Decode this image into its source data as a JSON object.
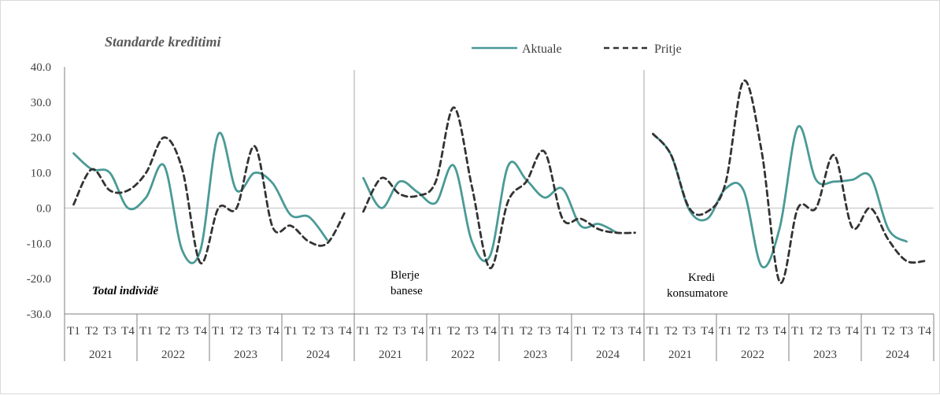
{
  "chart_data": {
    "type": "line",
    "title": "Standarde kreditimi",
    "ylim": [
      -30,
      40
    ],
    "yticks": [
      "40.0",
      "30.0",
      "20.0",
      "10.0",
      "0.0",
      "-10.0",
      "-20.0",
      "-30.0"
    ],
    "ytick_values": [
      40,
      30,
      20,
      10,
      0,
      -10,
      -20,
      -30
    ],
    "quarter_labels": [
      "T1",
      "T2",
      "T3",
      "T4"
    ],
    "years": [
      "2021",
      "2022",
      "2023",
      "2024"
    ],
    "legend": {
      "placement": "top-right",
      "entries": [
        "Aktuale",
        "Pritje"
      ]
    },
    "series_colors": {
      "Aktuale": "#4a9a96",
      "Pritje": "#333333"
    },
    "panels": [
      {
        "label": "Total individë",
        "series": [
          {
            "name": "Aktuale",
            "values": [
              15.5,
              11,
              10,
              0,
              3,
              12,
              -12,
              -12,
              21,
              5,
              10,
              7,
              -2,
              -2.5,
              -9
            ]
          },
          {
            "name": "Pritje",
            "values": [
              1,
              11,
              5,
              5,
              10,
              20,
              11,
              -15.5,
              0,
              0,
              17.5,
              -5.5,
              -5,
              -9.5,
              -10,
              -1
            ]
          }
        ]
      },
      {
        "label": "Blerje banese",
        "series": [
          {
            "name": "Aktuale",
            "values": [
              8.5,
              0,
              7.5,
              4.5,
              1.5,
              12,
              -9.5,
              -13.5,
              12,
              8,
              3,
              5.5,
              -5,
              -4.5,
              -7
            ]
          },
          {
            "name": "Pritje",
            "values": [
              -1,
              8.5,
              4,
              3.5,
              7.5,
              28.5,
              6,
              -17,
              2,
              7.5,
              16,
              -3,
              -3,
              -6,
              -7,
              -7
            ]
          }
        ]
      },
      {
        "label": "Kredi konsumatore",
        "series": [
          {
            "name": "Aktuale",
            "values": [
              21,
              15,
              -0.5,
              -3,
              5.5,
              5,
              -16.5,
              -5.5,
              23,
              8,
              7.5,
              8,
              9,
              -6,
              -9.5
            ]
          },
          {
            "name": "Pritje",
            "values": [
              21,
              15,
              0,
              -1,
              7,
              36,
              16,
              -21,
              0,
              0,
              15,
              -5.5,
              0,
              -9,
              -15,
              -15
            ]
          }
        ]
      }
    ]
  }
}
